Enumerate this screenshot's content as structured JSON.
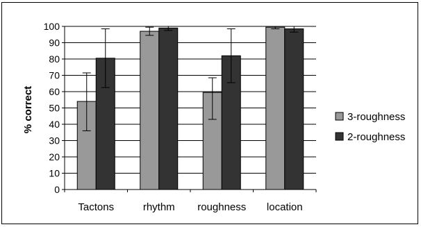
{
  "chart_data": {
    "type": "bar",
    "title": "",
    "xlabel": "",
    "ylabel": "% correct",
    "ylim": [
      0,
      100
    ],
    "yticks": [
      0,
      10,
      20,
      30,
      40,
      50,
      60,
      70,
      80,
      90,
      100
    ],
    "grid": true,
    "legend_position": "right",
    "categories": [
      "Tactons",
      "rhythm",
      "roughness",
      "location"
    ],
    "series": [
      {
        "name": "3-roughness",
        "color": "#999999",
        "values": [
          54,
          97,
          59.5,
          99.5
        ],
        "error_low": [
          36,
          94.5,
          43,
          98.5
        ],
        "error_high": [
          71.5,
          99.5,
          68.5,
          100
        ]
      },
      {
        "name": "2-roughness",
        "color": "#333333",
        "values": [
          80.5,
          99,
          82,
          98.5
        ],
        "error_low": [
          62.5,
          97.5,
          65.5,
          96.5
        ],
        "error_high": [
          98.5,
          100,
          98.5,
          100
        ]
      }
    ]
  }
}
